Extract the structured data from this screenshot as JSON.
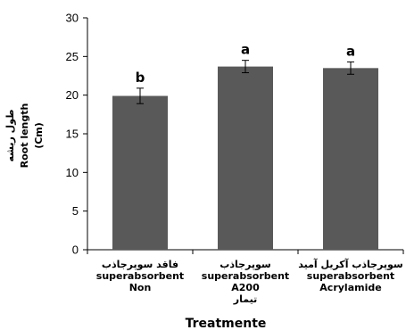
{
  "chart_data": {
    "type": "bar",
    "categories": [
      [
        "فاقد سوپرجاذب",
        "superabsorbent",
        "Non"
      ],
      [
        "سوپرجاذب",
        "superabsorbent",
        "A200",
        "تیمار"
      ],
      [
        "سوپرجاذب آکریل آمید",
        "superabsorbent",
        "Acrylamide"
      ]
    ],
    "values": [
      19.9,
      23.7,
      23.5
    ],
    "errors": [
      1.0,
      0.8,
      0.8
    ],
    "letters": [
      "b",
      "a",
      "a"
    ],
    "ylabel_lines": [
      "طول ریشه",
      "Root length",
      "(Cm)"
    ],
    "xlabel": "Treatmente",
    "ylim": [
      0,
      30
    ],
    "yticks": [
      0,
      5,
      10,
      15,
      20,
      25,
      30
    ],
    "bar_color": "#595959",
    "grid": false
  }
}
